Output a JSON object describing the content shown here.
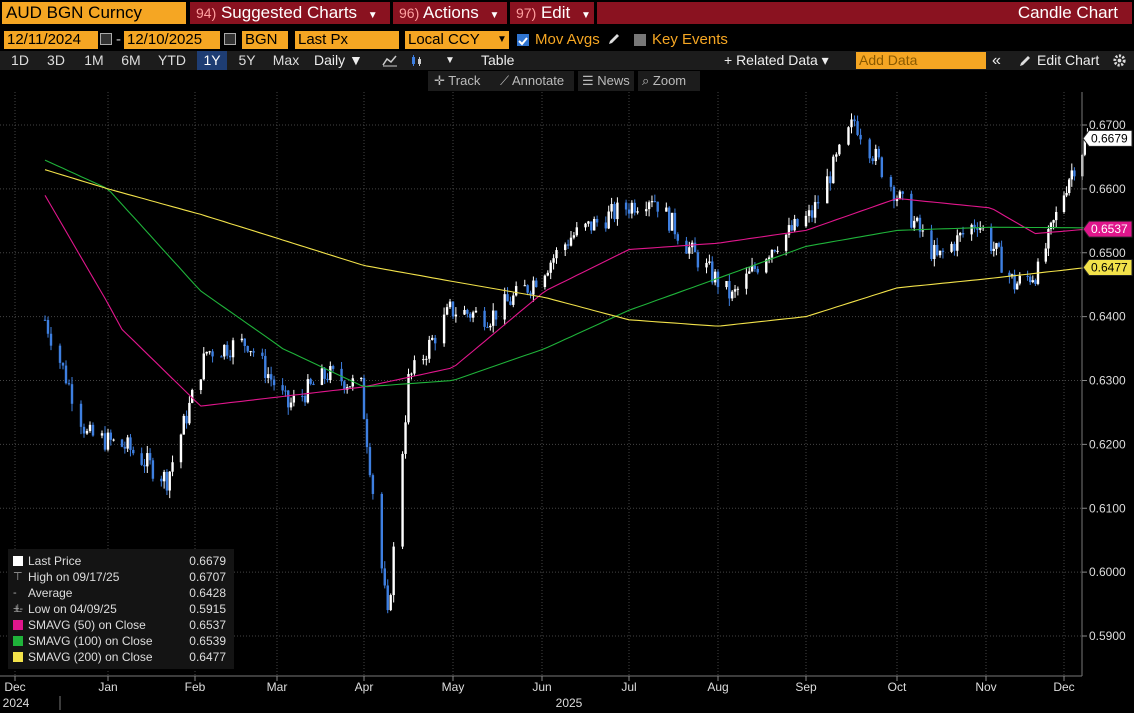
{
  "header": {
    "ticker": "AUD BGN Curncy",
    "menus": [
      {
        "num": "94)",
        "label": "Suggested Charts"
      },
      {
        "num": "96)",
        "label": "Actions"
      },
      {
        "num": "97)",
        "label": "Edit"
      }
    ],
    "chart_title": "Candle Chart"
  },
  "settings": {
    "start_date": "12/11/2024",
    "end_date": "12/10/2025",
    "source": "BGN",
    "field": "Last Px",
    "currency": "Local CCY",
    "mov_avgs_label": "Mov Avgs",
    "key_events_label": "Key Events"
  },
  "toolbar": {
    "periods": [
      "1D",
      "3D",
      "1M",
      "6M",
      "YTD",
      "1Y",
      "5Y",
      "Max"
    ],
    "active_period": "1Y",
    "frequency": "Daily ▼",
    "table_label": "Table",
    "related_data_label": "+ Related Data ▾",
    "add_data_placeholder": "Add Data",
    "collapse_label": "«",
    "edit_chart_label": "Edit Chart"
  },
  "tools": {
    "track": "Track",
    "annotate": "Annotate",
    "news": "News",
    "zoom": "Zoom"
  },
  "legend": [
    {
      "name": "Last Price",
      "value": "0.6679",
      "color": "#ffffff",
      "icon": "last-price-swatch"
    },
    {
      "name": "High on 09/17/25",
      "value": "0.6707",
      "icon": "high-marker-icon"
    },
    {
      "name": "Average",
      "value": "0.6428",
      "icon": "average-marker-icon"
    },
    {
      "name": "Low on 04/09/25",
      "value": "0.5915",
      "icon": "low-marker-icon"
    },
    {
      "name": "SMAVG (50)  on Close",
      "value": "0.6537",
      "color": "#e0168c",
      "icon": "sma50-swatch"
    },
    {
      "name": "SMAVG (100)  on Close",
      "value": "0.6539",
      "color": "#1fb33a",
      "icon": "sma100-swatch"
    },
    {
      "name": "SMAVG (200)  on Close",
      "value": "0.6477",
      "color": "#f2e24a",
      "icon": "sma200-swatch"
    }
  ],
  "chart_data": {
    "type": "line",
    "candle_chart": true,
    "x_ticks": [
      "Dec",
      "Jan",
      "Feb",
      "Mar",
      "Apr",
      "May",
      "Jun",
      "Jul",
      "Aug",
      "Sep",
      "Oct",
      "Nov",
      "Dec"
    ],
    "x_years": [
      "2024",
      "2025"
    ],
    "y_ticks": [
      "0.6700",
      "0.6600",
      "0.6500",
      "0.6400",
      "0.6300",
      "0.6200",
      "0.6100",
      "0.6000",
      "0.5900"
    ],
    "ylim": [
      0.586,
      0.6725
    ],
    "grid": true,
    "last_price_tag": "0.6679",
    "sma50_tag": "0.6537",
    "sma200_tag": "0.6477",
    "colors": {
      "up": "#ffffff",
      "down": "#3e7fe0",
      "sma50": "#e0168c",
      "sma100": "#1fb33a",
      "sma200": "#f2e24a"
    },
    "series": [
      {
        "name": "Last Price",
        "x": [
          "2024-12-11",
          "2024-12-25",
          "2025-01-08",
          "2025-01-22",
          "2025-02-05",
          "2025-02-19",
          "2025-03-05",
          "2025-03-19",
          "2025-03-31",
          "2025-04-09",
          "2025-04-16",
          "2025-04-30",
          "2025-05-14",
          "2025-05-28",
          "2025-06-11",
          "2025-06-25",
          "2025-07-09",
          "2025-07-23",
          "2025-08-06",
          "2025-08-20",
          "2025-09-03",
          "2025-09-17",
          "2025-10-01",
          "2025-10-15",
          "2025-10-29",
          "2025-11-12",
          "2025-11-21",
          "2025-12-03",
          "2025-12-10"
        ],
        "values": [
          0.6395,
          0.6215,
          0.6195,
          0.6145,
          0.6345,
          0.636,
          0.626,
          0.631,
          0.629,
          0.5925,
          0.63,
          0.641,
          0.64,
          0.645,
          0.6525,
          0.656,
          0.659,
          0.65,
          0.643,
          0.651,
          0.656,
          0.6707,
          0.659,
          0.649,
          0.655,
          0.645,
          0.647,
          0.662,
          0.6679
        ]
      },
      {
        "name": "SMAVG (50)  on Close",
        "x": [
          "2024-12-11",
          "2025-01-06",
          "2025-02-03",
          "2025-03-03",
          "2025-04-01",
          "2025-05-01",
          "2025-06-02",
          "2025-07-01",
          "2025-08-01",
          "2025-09-01",
          "2025-10-01",
          "2025-11-03",
          "2025-11-20",
          "2025-12-10"
        ],
        "values": [
          0.659,
          0.638,
          0.626,
          0.6275,
          0.629,
          0.632,
          0.644,
          0.6505,
          0.6515,
          0.6535,
          0.6585,
          0.657,
          0.653,
          0.6537
        ]
      },
      {
        "name": "SMAVG (100)  on Close",
        "x": [
          "2024-12-11",
          "2025-01-01",
          "2025-02-03",
          "2025-03-03",
          "2025-04-01",
          "2025-05-01",
          "2025-06-02",
          "2025-07-01",
          "2025-08-01",
          "2025-09-01",
          "2025-10-01",
          "2025-11-03",
          "2025-12-10"
        ],
        "values": [
          0.6645,
          0.66,
          0.644,
          0.635,
          0.629,
          0.63,
          0.635,
          0.641,
          0.646,
          0.651,
          0.6535,
          0.654,
          0.6539
        ]
      },
      {
        "name": "SMAVG (200)  on Close",
        "x": [
          "2024-12-11",
          "2025-01-01",
          "2025-02-03",
          "2025-03-03",
          "2025-04-01",
          "2025-05-01",
          "2025-06-02",
          "2025-07-01",
          "2025-08-01",
          "2025-09-01",
          "2025-10-01",
          "2025-11-03",
          "2025-12-10"
        ],
        "values": [
          0.663,
          0.66,
          0.656,
          0.652,
          0.648,
          0.6455,
          0.643,
          0.6395,
          0.6385,
          0.64,
          0.6445,
          0.646,
          0.6477
        ]
      }
    ]
  }
}
